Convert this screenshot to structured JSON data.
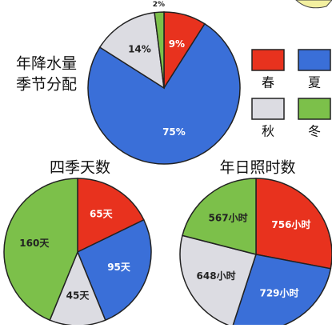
{
  "chart_data": [
    {
      "type": "pie",
      "title": [
        "年降水量",
        "季节分配"
      ],
      "categories": [
        "春",
        "夏",
        "秋",
        "冬"
      ],
      "colors": [
        "#e8321e",
        "#3a6fd8",
        "#dcdce2",
        "#7cc04a"
      ],
      "values": [
        9,
        75,
        14,
        2
      ],
      "value_labels": [
        "9%",
        "75%",
        "14%",
        "2%"
      ]
    },
    {
      "type": "pie",
      "title": [
        "四季天数"
      ],
      "colors": [
        "#e8321e",
        "#3a6fd8",
        "#dcdce2",
        "#7cc04a"
      ],
      "values": [
        65,
        95,
        45,
        160
      ],
      "value_labels": [
        "65天",
        "95天",
        "45天",
        "160天"
      ]
    },
    {
      "type": "pie",
      "title": [
        "年日照时数"
      ],
      "colors": [
        "#e8321e",
        "#3a6fd8",
        "#dcdce2",
        "#7cc04a"
      ],
      "values": [
        756,
        729,
        648,
        567
      ],
      "value_labels": [
        "756小时",
        "729小时",
        "648小时",
        "567小时"
      ]
    }
  ]
}
